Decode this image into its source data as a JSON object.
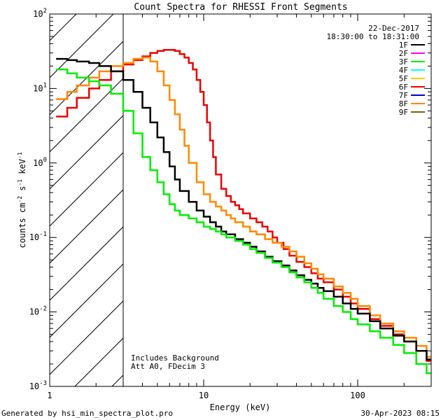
{
  "chart_data": {
    "type": "line",
    "title": "Count Spectra for RHESSI Front Segments",
    "xlabel": "Energy (keV)",
    "ylabel_parts": [
      "counts cm",
      "-2",
      " s",
      "-1",
      " keV",
      "-1"
    ],
    "x_scale": "log",
    "y_scale": "log",
    "xlim": [
      1,
      300
    ],
    "ylim": [
      0.001,
      100
    ],
    "x_ticks": [
      {
        "value": 1,
        "label": "1"
      },
      {
        "value": 10,
        "label": "10"
      },
      {
        "value": 100,
        "label": "100"
      }
    ],
    "y_ticks": [
      {
        "value": 0.001,
        "base": "10",
        "exp": "-3"
      },
      {
        "value": 0.01,
        "base": "10",
        "exp": "-2"
      },
      {
        "value": 0.1,
        "base": "10",
        "exp": "-1"
      },
      {
        "value": 1,
        "base": "10",
        "exp": "0"
      },
      {
        "value": 10,
        "base": "10",
        "exp": "1"
      },
      {
        "value": 100,
        "base": "10",
        "exp": "2"
      }
    ],
    "attenuator_cutoff_kev": 3,
    "date": "22-Dec-2017",
    "time_range": "18:30:00 to 18:31:00",
    "annotations": [
      "Includes Background",
      "Att A0, FDecim 3"
    ],
    "legend": [
      {
        "label": "1F",
        "color": "#000000"
      },
      {
        "label": "2F",
        "color": "#ff00ff"
      },
      {
        "label": "3F",
        "color": "#00ee00"
      },
      {
        "label": "4F",
        "color": "#00ffff"
      },
      {
        "label": "5F",
        "color": "#ffcc00"
      },
      {
        "label": "6F",
        "color": "#ee0000"
      },
      {
        "label": "7F",
        "color": "#0000cc"
      },
      {
        "label": "8F",
        "color": "#ff8800"
      },
      {
        "label": "9F",
        "color": "#776600"
      }
    ],
    "series": [
      {
        "name": "6F",
        "color": "#ee0000",
        "points": [
          [
            1.1,
            4.2
          ],
          [
            1.3,
            5.5
          ],
          [
            1.5,
            7.5
          ],
          [
            1.8,
            10
          ],
          [
            2.1,
            13
          ],
          [
            2.5,
            17
          ],
          [
            3.0,
            21
          ],
          [
            3.5,
            24
          ],
          [
            4.0,
            27
          ],
          [
            4.5,
            30
          ],
          [
            5.0,
            32
          ],
          [
            5.5,
            33
          ],
          [
            6.0,
            33
          ],
          [
            6.5,
            32
          ],
          [
            7.0,
            29
          ],
          [
            7.5,
            26
          ],
          [
            8.0,
            22
          ],
          [
            8.5,
            18
          ],
          [
            9.0,
            13
          ],
          [
            9.5,
            9
          ],
          [
            10,
            6
          ],
          [
            10.5,
            3.5
          ],
          [
            11,
            2
          ],
          [
            11.5,
            1.2
          ],
          [
            12,
            0.7
          ],
          [
            13,
            0.45
          ],
          [
            14,
            0.36
          ],
          [
            15,
            0.3
          ],
          [
            16,
            0.27
          ],
          [
            17,
            0.24
          ],
          [
            18,
            0.21
          ],
          [
            20,
            0.18
          ],
          [
            22,
            0.16
          ],
          [
            24,
            0.14
          ],
          [
            26,
            0.12
          ],
          [
            28,
            0.1
          ],
          [
            30,
            0.085
          ],
          [
            33,
            0.07
          ],
          [
            36,
            0.057
          ],
          [
            40,
            0.047
          ],
          [
            45,
            0.04
          ],
          [
            50,
            0.033
          ],
          [
            55,
            0.028
          ],
          [
            60,
            0.025
          ],
          [
            70,
            0.02
          ],
          [
            80,
            0.016
          ],
          [
            90,
            0.013
          ],
          [
            100,
            0.011
          ],
          [
            120,
            0.008
          ],
          [
            140,
            0.0065
          ],
          [
            170,
            0.005
          ],
          [
            200,
            0.004
          ],
          [
            240,
            0.003
          ],
          [
            280,
            0.0022
          ]
        ]
      },
      {
        "name": "8F",
        "color": "#ff8800",
        "points": [
          [
            1.1,
            7.2
          ],
          [
            1.3,
            9
          ],
          [
            1.5,
            11
          ],
          [
            1.8,
            14
          ],
          [
            2.1,
            17
          ],
          [
            2.5,
            20
          ],
          [
            3.0,
            22
          ],
          [
            3.5,
            25
          ],
          [
            4.0,
            26
          ],
          [
            4.5,
            23
          ],
          [
            5.0,
            17
          ],
          [
            5.5,
            11
          ],
          [
            6.0,
            7
          ],
          [
            6.5,
            4.5
          ],
          [
            7.0,
            2.8
          ],
          [
            7.5,
            1.7
          ],
          [
            8.0,
            1.0
          ],
          [
            9.0,
            0.55
          ],
          [
            10,
            0.38
          ],
          [
            11,
            0.3
          ],
          [
            12,
            0.26
          ],
          [
            13,
            0.23
          ],
          [
            14,
            0.2
          ],
          [
            15,
            0.18
          ],
          [
            16,
            0.16
          ],
          [
            18,
            0.14
          ],
          [
            20,
            0.12
          ],
          [
            22,
            0.11
          ],
          [
            25,
            0.095
          ],
          [
            28,
            0.085
          ],
          [
            32,
            0.075
          ],
          [
            36,
            0.065
          ],
          [
            40,
            0.055
          ],
          [
            45,
            0.045
          ],
          [
            50,
            0.038
          ],
          [
            55,
            0.032
          ],
          [
            60,
            0.028
          ],
          [
            70,
            0.022
          ],
          [
            80,
            0.018
          ],
          [
            90,
            0.015
          ],
          [
            100,
            0.012
          ],
          [
            120,
            0.009
          ],
          [
            140,
            0.007
          ],
          [
            170,
            0.0055
          ],
          [
            200,
            0.0045
          ],
          [
            240,
            0.0035
          ],
          [
            280,
            0.0025
          ]
        ]
      },
      {
        "name": "1F",
        "color": "#000000",
        "points": [
          [
            1.1,
            25
          ],
          [
            1.3,
            24
          ],
          [
            1.5,
            23
          ],
          [
            1.8,
            22
          ],
          [
            2.1,
            20
          ],
          [
            2.5,
            17
          ],
          [
            3.0,
            13
          ],
          [
            3.5,
            9
          ],
          [
            4.0,
            5.5
          ],
          [
            4.5,
            3.5
          ],
          [
            5.0,
            2.2
          ],
          [
            5.5,
            1.4
          ],
          [
            6.0,
            0.9
          ],
          [
            6.5,
            0.6
          ],
          [
            7.0,
            0.42
          ],
          [
            8.0,
            0.3
          ],
          [
            9.0,
            0.23
          ],
          [
            10,
            0.19
          ],
          [
            11,
            0.16
          ],
          [
            12,
            0.14
          ],
          [
            13,
            0.12
          ],
          [
            14,
            0.11
          ],
          [
            16,
            0.095
          ],
          [
            18,
            0.085
          ],
          [
            20,
            0.075
          ],
          [
            22,
            0.065
          ],
          [
            25,
            0.055
          ],
          [
            28,
            0.048
          ],
          [
            32,
            0.042
          ],
          [
            36,
            0.036
          ],
          [
            40,
            0.031
          ],
          [
            45,
            0.027
          ],
          [
            50,
            0.024
          ],
          [
            55,
            0.021
          ],
          [
            60,
            0.019
          ],
          [
            70,
            0.016
          ],
          [
            80,
            0.013
          ],
          [
            90,
            0.011
          ],
          [
            100,
            0.0095
          ],
          [
            120,
            0.0075
          ],
          [
            140,
            0.006
          ],
          [
            170,
            0.0048
          ],
          [
            200,
            0.004
          ],
          [
            240,
            0.003
          ],
          [
            280,
            0.0023
          ]
        ]
      },
      {
        "name": "3F",
        "color": "#00ee00",
        "points": [
          [
            1.1,
            18
          ],
          [
            1.3,
            16
          ],
          [
            1.5,
            14
          ],
          [
            1.8,
            12.5
          ],
          [
            2.1,
            11
          ],
          [
            2.5,
            8.5
          ],
          [
            3.0,
            5
          ],
          [
            3.5,
            2.5
          ],
          [
            4.0,
            1.2
          ],
          [
            4.5,
            0.8
          ],
          [
            5.0,
            0.55
          ],
          [
            5.5,
            0.38
          ],
          [
            6.0,
            0.28
          ],
          [
            6.5,
            0.23
          ],
          [
            7.0,
            0.2
          ],
          [
            8.0,
            0.18
          ],
          [
            9.0,
            0.16
          ],
          [
            10,
            0.14
          ],
          [
            11,
            0.13
          ],
          [
            12,
            0.12
          ],
          [
            13,
            0.11
          ],
          [
            14,
            0.1
          ],
          [
            16,
            0.09
          ],
          [
            18,
            0.08
          ],
          [
            20,
            0.07
          ],
          [
            22,
            0.062
          ],
          [
            25,
            0.053
          ],
          [
            28,
            0.046
          ],
          [
            32,
            0.04
          ],
          [
            36,
            0.034
          ],
          [
            40,
            0.029
          ],
          [
            45,
            0.025
          ],
          [
            50,
            0.021
          ],
          [
            55,
            0.018
          ],
          [
            60,
            0.015
          ],
          [
            70,
            0.012
          ],
          [
            80,
            0.01
          ],
          [
            90,
            0.008
          ],
          [
            100,
            0.0068
          ],
          [
            120,
            0.0055
          ],
          [
            140,
            0.0045
          ],
          [
            170,
            0.0036
          ],
          [
            200,
            0.0028
          ],
          [
            240,
            0.002
          ],
          [
            280,
            0.0015
          ]
        ]
      }
    ]
  },
  "footer": {
    "generated_by": "Generated by hsi_min_spectra_plot.pro",
    "timestamp": "30-Apr-2023 08:15"
  }
}
